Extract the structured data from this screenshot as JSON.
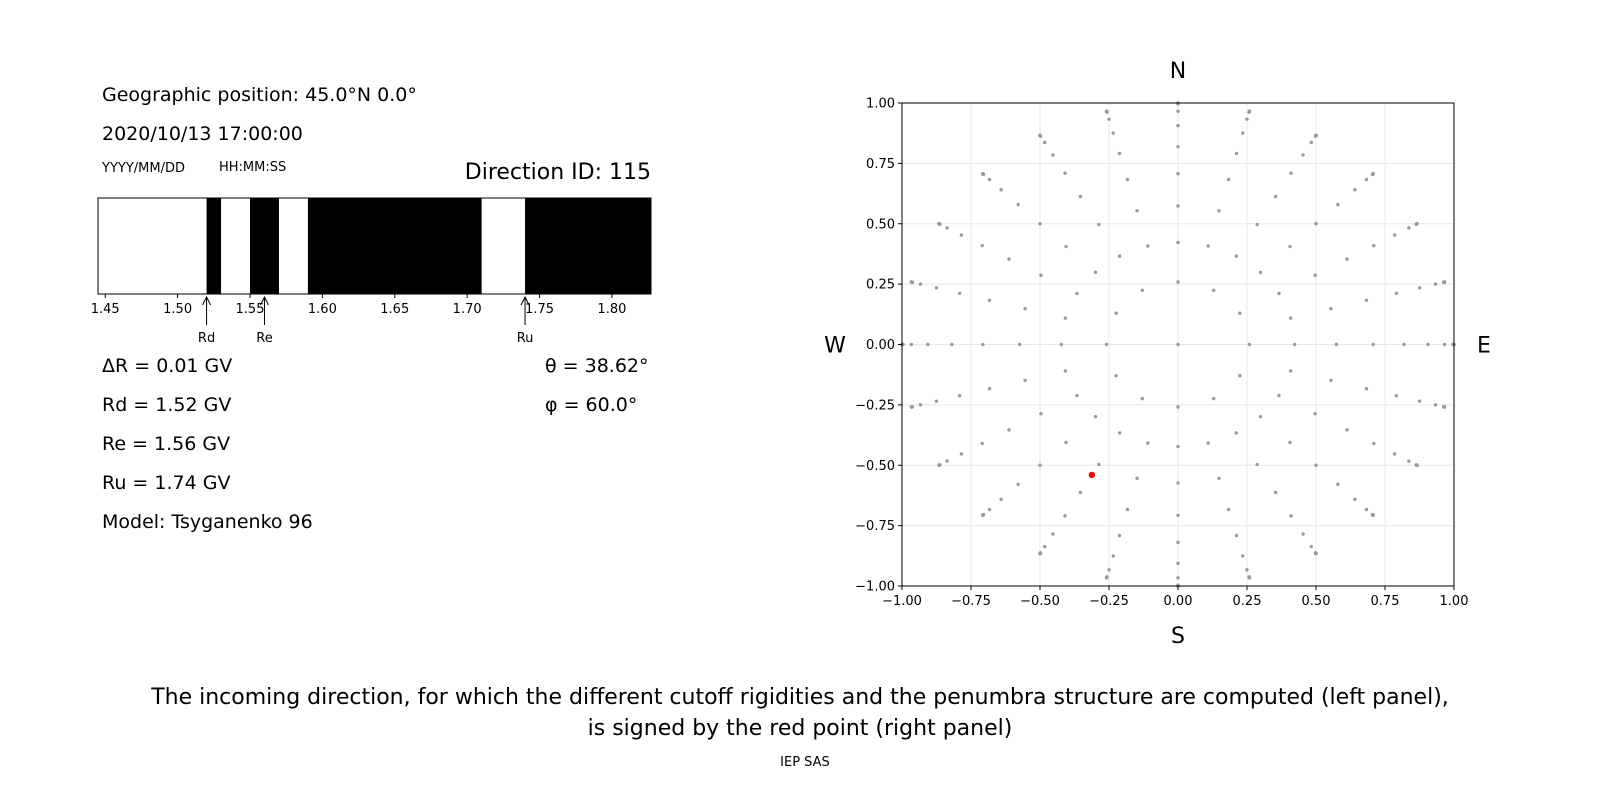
{
  "left_panel": {
    "position": "Geographic position: 45.0°N 0.0°",
    "datetime": "2020/10/13 17:00:00",
    "date_fmt": "YYYY/MM/DD",
    "time_fmt": "HH:MM:SS",
    "direction": "Direction ID: 115",
    "delta_r": "ΔR = 0.01 GV",
    "rd": "Rd = 1.52 GV",
    "re": "Re = 1.56 GV",
    "ru": "Ru = 1.74 GV",
    "model": "Model: Tsyganenko 96",
    "theta": "θ = 38.62°",
    "phi": "φ = 60.0°"
  },
  "caption": {
    "line1": "The incoming direction, for which the different cutoff rigidities and the penumbra structure are computed (left panel),",
    "line2": "is signed by the red point (right panel)"
  },
  "footer": "IEP SAS",
  "chart_data": [
    {
      "type": "penumbra-bar",
      "xlim": [
        1.445,
        1.827
      ],
      "xticks": [
        1.45,
        1.5,
        1.55,
        1.6,
        1.65,
        1.7,
        1.75,
        1.8
      ],
      "xtick_labels": [
        "1.45",
        "1.50",
        "1.55",
        "1.60",
        "1.65",
        "1.70",
        "1.75",
        "1.80"
      ],
      "bands_note": "black = forbidden, white = allowed",
      "black_bands": [
        [
          1.52,
          1.53
        ],
        [
          1.55,
          1.57
        ],
        [
          1.59,
          1.71
        ],
        [
          1.74,
          1.827
        ]
      ],
      "markers": [
        {
          "label": "Rd",
          "value": 1.52
        },
        {
          "label": "Re",
          "value": 1.56
        },
        {
          "label": "Ru",
          "value": 1.74
        }
      ]
    },
    {
      "type": "scatter",
      "xlim": [
        -1,
        1
      ],
      "ylim": [
        -1,
        1
      ],
      "xticks": [
        -1.0,
        -0.75,
        -0.5,
        -0.25,
        0.0,
        0.25,
        0.5,
        0.75,
        1.0
      ],
      "yticks": [
        -1.0,
        -0.75,
        -0.5,
        -0.25,
        0.0,
        0.25,
        0.5,
        0.75,
        1.0
      ],
      "xtick_labels": [
        "−1.00",
        "−0.75",
        "−0.50",
        "−0.25",
        "0.00",
        "0.25",
        "0.50",
        "0.75",
        "1.00"
      ],
      "ytick_labels": [
        "−1.00",
        "−0.75",
        "−0.50",
        "−0.25",
        "0.00",
        "0.25",
        "0.50",
        "0.75",
        "1.00"
      ],
      "grid": true,
      "compass": {
        "north": "N",
        "south": "S",
        "west": "W",
        "east": "E"
      },
      "grid_points_note": "gray direction grid: zenith 0° plus rings at zenith 15°,25°,...,85° and 86°..90°; azimuths every 15° (every 30° for 15° ring), radius = sin(zenith)",
      "zenith_rings_deg": [
        15,
        25,
        35,
        45,
        55,
        65,
        75,
        85,
        86,
        87,
        88,
        89,
        90
      ],
      "azimuth_step_deg": 15,
      "point_color": "#999999",
      "highlight": {
        "x": -0.312,
        "y": -0.54,
        "color": "#ff0000"
      }
    }
  ]
}
